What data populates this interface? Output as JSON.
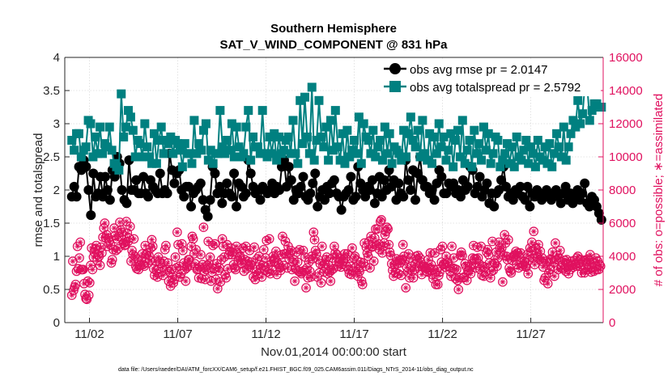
{
  "chart_data": {
    "type": "line",
    "title": "Southern Hemisphere",
    "subtitle": "SAT_V_WIND_COMPONENT @ 831 hPa",
    "xlabel": "Nov.01,2014 00:00:00 start",
    "ylabel_left": "rmse and totalspread",
    "ylabel_right": "# of obs: o=possible; ∗=assimilated",
    "footnote": "data file: /Users/raeder/DAI/ATM_forcXX/CAM6_setup/f.e21.FHIST_BGC.f09_025.CAM6assim.011/Diags_NTrS_2014-11/obs_diag_output.nc",
    "x_day_range": [
      0.6,
      31.1
    ],
    "ylim_left": [
      0,
      4
    ],
    "ylim_right": [
      0,
      16000
    ],
    "x_ticks": [
      {
        "day": 2,
        "label": "11/02"
      },
      {
        "day": 7,
        "label": "11/07"
      },
      {
        "day": 12,
        "label": "11/12"
      },
      {
        "day": 17,
        "label": "11/17"
      },
      {
        "day": 22,
        "label": "11/22"
      },
      {
        "day": 27,
        "label": "11/27"
      }
    ],
    "y_ticks_left": [
      "0",
      "0.5",
      "1",
      "1.5",
      "2",
      "2.5",
      "3",
      "3.5",
      "4"
    ],
    "y_ticks_right": [
      "0",
      "2000",
      "4000",
      "6000",
      "8000",
      "10000",
      "12000",
      "14000",
      "16000"
    ],
    "grid": true,
    "legend_position": "top-right",
    "colors": {
      "rmse": "#000000",
      "totalspread": "#008080",
      "obs": "#e0115f",
      "grid": "#dcdcdc",
      "axis": "#262626"
    },
    "series": [
      {
        "name": "obs avg rmse pr = 2.0147",
        "marker": "circle",
        "values": [
          1.9,
          2.05,
          1.9,
          2.35,
          2.3,
          2.45,
          2.35,
          2.0,
          1.62,
          2.25,
          1.9,
          1.95,
          2.2,
          1.9,
          2.2,
          2.0,
          1.85,
          2.3,
          2.2,
          2.5,
          2.4,
          2.0,
          1.85,
          1.8,
          2.45,
          2.0,
          2.0,
          2.15,
          1.95,
          1.95,
          2.2,
          1.95,
          1.9,
          2.15,
          2.05,
          2.0,
          1.95,
          2.25,
          1.95,
          2.0,
          1.95,
          2.55,
          2.3,
          2.1,
          2.25,
          2.3,
          2.0,
          1.9,
          2.05,
          2.05,
          1.75,
          1.95,
          2.0,
          2.05,
          2.1,
          1.85,
          1.7,
          1.6,
          1.85,
          2.35,
          2.25,
          1.95,
          2.05,
          1.8,
          1.95,
          2.1,
          1.95,
          1.9,
          2.25,
          1.75,
          2.1,
          2.05,
          1.9,
          1.95,
          2.45,
          2.25,
          2.05,
          1.95,
          2.0,
          1.85,
          2.05,
          2.0,
          1.95,
          2.0,
          2.1,
          1.95,
          2.05,
          2.0,
          2.35,
          2.45,
          2.05,
          2.35,
          2.15,
          1.85,
          2.0,
          1.95,
          2.05,
          2.2,
          1.9,
          1.85,
          1.95,
          2.1,
          2.25,
          1.75,
          1.9,
          2.0,
          1.85,
          2.05,
          1.95,
          2.1,
          2.15,
          1.95,
          1.9,
          1.7,
          1.9,
          1.95,
          2.0,
          2.2,
          1.85,
          1.9,
          2.35,
          2.1,
          2.0,
          1.9,
          2.05,
          2.0,
          2.15,
          1.8,
          1.95,
          2.2,
          1.9,
          2.15,
          2.0,
          2.3,
          2.05,
          2.15,
          1.85,
          2.1,
          1.95,
          1.9,
          2.45,
          2.15,
          2.0,
          2.3,
          1.85,
          2.25,
          2.5,
          2.15,
          2.05,
          2.05,
          1.95,
          2.0,
          1.85,
          2.1,
          2.3,
          2.2,
          1.95,
          1.95,
          2.1,
          2.05,
          2.1,
          1.95,
          2.0,
          1.9,
          2.15,
          2.0,
          2.05,
          2.35,
          2.3,
          1.95,
          2.05,
          2.2,
          1.9,
          2.0,
          2.1,
          1.8,
          1.95,
          1.75,
          1.95,
          2.0,
          2.15,
          2.35,
          2.05,
          1.9,
          1.95,
          1.85,
          2.0,
          1.95,
          2.05,
          1.9,
          1.85,
          2.05,
          1.75,
          1.95,
          1.9,
          2.0,
          1.95,
          1.85,
          1.95,
          2.0,
          1.9,
          1.85,
          1.95,
          2.0,
          1.9,
          1.8,
          1.95,
          2.05,
          1.85,
          1.95,
          1.8,
          1.9,
          2.0,
          1.85,
          1.95,
          2.1,
          1.8,
          1.75,
          1.9,
          1.85,
          1.75,
          1.65,
          1.55
        ]
      },
      {
        "name": "obs avg totalspread pr = 2.5792",
        "marker": "square",
        "values": [
          2.75,
          2.6,
          2.85,
          2.85,
          2.5,
          2.6,
          2.65,
          3.05,
          3.0,
          2.5,
          2.8,
          2.55,
          2.95,
          2.55,
          2.7,
          2.65,
          2.95,
          2.6,
          2.4,
          2.35,
          2.3,
          3.45,
          2.8,
          2.95,
          3.2,
          3.1,
          2.9,
          2.5,
          2.75,
          2.7,
          2.5,
          3.0,
          2.65,
          2.5,
          2.4,
          2.85,
          2.4,
          2.75,
          2.95,
          2.55,
          2.75,
          2.7,
          2.8,
          2.55,
          2.75,
          2.7,
          2.6,
          2.35,
          2.7,
          2.55,
          2.55,
          2.4,
          3.05,
          2.55,
          2.7,
          2.6,
          2.9,
          3.0,
          2.45,
          2.6,
          2.4,
          2.55,
          2.55,
          3.2,
          2.65,
          2.55,
          2.75,
          2.6,
          3.0,
          2.5,
          2.95,
          2.65,
          2.5,
          2.55,
          2.95,
          3.2,
          2.45,
          2.8,
          2.65,
          2.65,
          2.55,
          3.2,
          2.55,
          2.5,
          2.8,
          2.55,
          2.85,
          2.45,
          2.8,
          2.55,
          2.6,
          2.75,
          2.8,
          2.55,
          3.05,
          2.55,
          2.4,
          3.35,
          2.7,
          3.4,
          2.8,
          2.55,
          3.55,
          2.45,
          2.75,
          3.35,
          2.8,
          2.65,
          2.95,
          2.45,
          3.05,
          2.6,
          3.2,
          2.65,
          2.45,
          2.85,
          2.4,
          2.9,
          2.5,
          2.6,
          2.75,
          2.55,
          3.1,
          2.4,
          3.0,
          2.8,
          2.75,
          2.55,
          2.9,
          2.5,
          2.65,
          2.75,
          2.45,
          2.95,
          2.55,
          2.85,
          2.4,
          2.65,
          2.6,
          2.55,
          2.45,
          2.9,
          2.5,
          2.85,
          3.1,
          2.75,
          2.65,
          2.9,
          2.5,
          3.05,
          2.55,
          2.45,
          2.85,
          2.4,
          2.8,
          2.55,
          3.0,
          2.65,
          2.8,
          2.45,
          2.6,
          2.85,
          2.35,
          2.75,
          2.9,
          2.5,
          3.05,
          2.4,
          2.6,
          2.75,
          2.35,
          2.9,
          2.55,
          2.7,
          2.45,
          2.95,
          2.6,
          2.85,
          2.4,
          2.55,
          2.8,
          2.75,
          2.35,
          2.45,
          2.55,
          2.7,
          2.4,
          2.65,
          2.35,
          2.8,
          2.5,
          2.45,
          2.6,
          2.75,
          2.4,
          2.65,
          2.55,
          2.35,
          2.75,
          2.5,
          2.45,
          2.65,
          2.4,
          2.7,
          2.35,
          2.55,
          2.85,
          2.65,
          2.5,
          2.95,
          2.45,
          2.65,
          2.85,
          3.05,
          2.95,
          3.35,
          3.0,
          3.15,
          3.6,
          3.55,
          3.05,
          3.2,
          3.3,
          3.3,
          3.25,
          3.25
        ]
      }
    ],
    "obs_possible": [
      1650,
      3700,
      1950,
      2150,
      2300,
      3100,
      4600,
      3250,
      3900,
      4850,
      3200,
      3200,
      3200,
      2350,
      1700,
      1450,
      1400,
      2500,
      1650,
      2400,
      3450,
      4500,
      3200,
      3950,
      4250,
      4450,
      4650,
      3750,
      4100,
      4000,
      3450,
      4550,
      4200,
      5150,
      5700,
      6000,
      5100,
      5300,
      4600,
      5100,
      4950,
      4700,
      3600,
      3800,
      4400,
      5700,
      5250,
      4350,
      5050,
      4450,
      5200,
      6050,
      5600,
      5450,
      5000,
      4800,
      4650,
      4700,
      6100,
      5400,
      4900,
      5100,
      5800,
      3700,
      4350,
      4100,
      5050,
      4000,
      3400,
      3250,
      3850,
      3200,
      3450,
      3500,
      3750,
      4150,
      3500,
      3400,
      4650,
      4100,
      4200,
      3600,
      4050,
      3750,
      4500,
      5000,
      4600,
      3250,
      2850,
      3700,
      3150,
      2750,
      3950,
      3700,
      3600,
      3050,
      3350,
      2850,
      3700,
      4400,
      4650,
      3200,
      3600,
      2500,
      3050,
      2200,
      3200,
      2750,
      2400,
      2600,
      3950,
      3300,
      5450,
      4700,
      3400,
      2750,
      2950,
      4750,
      4350,
      3600,
      3200,
      2500,
      3300,
      3400,
      3800,
      3800,
      3450,
      4600,
      5200,
      5050,
      4150,
      3550,
      4400,
      3200,
      3250,
      2700,
      3350,
      4100,
      2650,
      3500,
      5750,
      3100,
      2600,
      3200,
      3450,
      4900,
      3550,
      3950,
      2500,
      3050,
      4650,
      3250,
      4750,
      2600,
      3550,
      2050,
      3150,
      3300,
      2450,
      3800,
      5050,
      4600,
      3950,
      2900,
      2700,
      4700,
      3250,
      4100,
      4300,
      4500,
      4100,
      4250,
      3500,
      3300,
      3200,
      4600,
      4200,
      3750,
      3950,
      4000,
      3600,
      3550,
      4500,
      3100,
      3800,
      4600,
      3250,
      3700,
      3400,
      4350,
      3500,
      3650,
      3300,
      2750,
      4550,
      2600,
      3050,
      3850,
      2950,
      4000,
      3500,
      3300,
      2750,
      3450,
      4400,
      3150,
      3900,
      4950,
      3050,
      3450,
      5050,
      2950,
      3700,
      3150,
      4000,
      3700,
      3900,
      4300,
      2900,
      3600,
      3500,
      3300,
      3150,
      4100,
      5200,
      3450,
      4150,
      4900,
      4150,
      3300,
      4600,
      3850,
      4200,
      4350,
      3200,
      3650,
      3800,
      2500,
      3250,
      4250,
      3650,
      3100,
      4400,
      3050,
      2950,
      3050,
      4350,
      3150,
      3950,
      2100,
      3300,
      2700,
      3650,
      3100,
      2750,
      4000,
      3850,
      5450,
      5000,
      4350,
      4150,
      2750,
      3800,
      3000,
      3550,
      2400,
      4600,
      3450,
      3050,
      3550,
      3800,
      3950,
      2950,
      3450,
      3050,
      2500,
      3150,
      3900,
      3250,
      4600,
      4200,
      3650,
      4100,
      3400,
      3700,
      3850,
      3350,
      3500,
      3700,
      3850,
      4150,
      3900,
      3400,
      4150,
      3200,
      2950,
      3400,
      2900,
      4500,
      3100,
      3900,
      4000,
      3350,
      3750,
      2800,
      3200,
      3100,
      3650,
      2500,
      2300,
      3600,
      4800,
      3400,
      4550,
      4200,
      4000,
      4900,
      3300,
      5200,
      4550,
      4600,
      3700,
      5100,
      5650,
      4650,
      5650,
      4750,
      4400,
      6100,
      6200,
      4200,
      4600,
      4800,
      5300,
      5500,
      5750,
      5650,
      4700,
      4250,
      4050,
      3550,
      3150,
      2800,
      3500,
      3050,
      3850,
      3550,
      2950,
      3750,
      3600,
      2850,
      3800,
      4700,
      4000,
      3750,
      2100,
      3350,
      3050,
      4150,
      2700,
      3900,
      3400,
      3100,
      2700,
      3200,
      3550,
      4000,
      3800,
      4050,
      3400,
      3900,
      3650,
      2900,
      3350,
      3400,
      3400,
      3300,
      3100,
      3050,
      3800,
      3200,
      4200,
      3500,
      2900,
      2650,
      3200,
      4200,
      2300,
      3200,
      2300,
      2850,
      3050,
      4400,
      3650,
      4600,
      3500,
      3550,
      3350,
      4000,
      3600,
      3650,
      3400,
      3100,
      2800,
      4600,
      3300,
      3900,
      3250,
      2650,
      3200,
      2550,
      2000,
      2700,
      4050,
      4250,
      4050,
      2700,
      2750,
      3550,
      3400,
      2550,
      3100,
      3150,
      3350,
      2950,
      3550,
      3900,
      4650,
      3850,
      3300,
      3850,
      4550,
      3900,
      3550,
      3200,
      4600,
      2850,
      3400,
      2800,
      3350,
      3050,
      4250,
      4400,
      4100,
      3600,
      2700,
      3100,
      4900,
      3150,
      3600,
      3550,
      4250,
      3400,
      3900,
      4850,
      4500,
      4250,
      4500,
      2450,
      4050,
      5300,
      4800,
      4000,
      3800,
      5000,
      3300,
      3100,
      3000,
      3750,
      4000,
      3950,
      4100,
      4300,
      3500,
      4200,
      3300,
      3950,
      4200,
      3600,
      3400,
      3500,
      3700,
      3400,
      3350,
      4100,
      2950,
      3750,
      4500,
      4300,
      4850,
      3900,
      5500,
      3500,
      4500,
      4150,
      3950,
      4700,
      3800,
      4300,
      3700,
      3900,
      3350,
      2550,
      2700,
      3700,
      3600,
      2350,
      3000,
      3200,
      3850,
      3800,
      4250,
      3400,
      2800,
      4800,
      3800,
      4050,
      3200,
      3900,
      4350,
      3300,
      3650,
      3550,
      3250,
      3750,
      3100,
      3800,
      3500,
      2950,
      3400,
      3200,
      3700,
      3450,
      3350,
      3750,
      3500,
      3400,
      3900,
      4000,
      3550,
      3400,
      3800,
      3000,
      3650,
      3750,
      3000,
      3300,
      3800,
      3200,
      3850,
      3750,
      4100,
      3050,
      3350,
      3600,
      3100,
      3550,
      3900,
      3200,
      3700,
      3200,
      3500,
      3400
    ],
    "obs_assimilated_note": "assimilated counts coincide with possible counts"
  }
}
